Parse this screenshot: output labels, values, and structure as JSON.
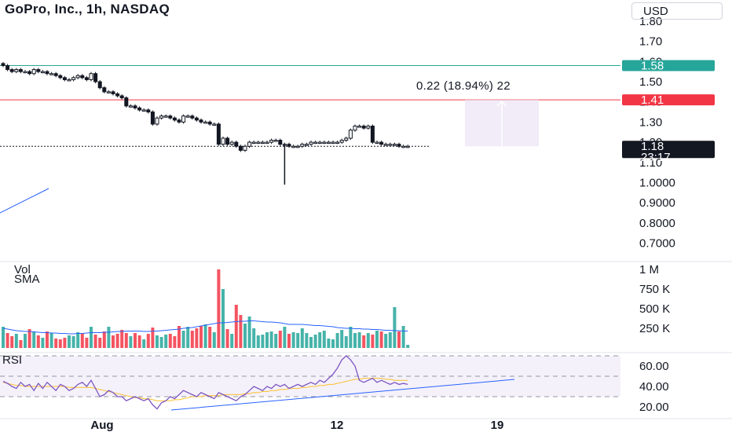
{
  "header": {
    "title": "GoPro, Inc., 1h, NASDAQ",
    "currency": "USD"
  },
  "measure_label": "0.22 (18.94%) 22",
  "panes": {
    "volume_label": "Vol",
    "volume_sma_label": "SMA",
    "rsi_label": "RSI"
  },
  "price_badges": [
    {
      "text": "1.58",
      "value": 1.58,
      "color": "#26a69a"
    },
    {
      "text": "1.41",
      "value": 1.41,
      "color": "#f23645"
    },
    {
      "text": "1.18",
      "value": 1.18,
      "color": "#131722",
      "sub": "23:17"
    }
  ],
  "chart_data": [
    {
      "type": "candlestick",
      "title": "GoPro, Inc., 1h, NASDAQ",
      "y_ticks": [
        "1.80",
        "1.70",
        "1.60",
        "1.50",
        "1.40",
        "1.30",
        "1.20",
        "1.10",
        "1.0000",
        "0.9000",
        "0.8000",
        "0.7000"
      ],
      "x_ticks": [
        "Aug",
        "12",
        "19"
      ],
      "horizontal_lines": [
        {
          "value": 1.58,
          "color": "#26a69a"
        },
        {
          "value": 1.41,
          "color": "#f23645"
        },
        {
          "value": 1.18,
          "color": "#131722",
          "style": "dotted"
        }
      ],
      "close": [
        1.58,
        1.56,
        1.55,
        1.56,
        1.55,
        1.55,
        1.54,
        1.56,
        1.55,
        1.55,
        1.54,
        1.54,
        1.53,
        1.52,
        1.51,
        1.51,
        1.52,
        1.53,
        1.52,
        1.51,
        1.54,
        1.5,
        1.47,
        1.45,
        1.45,
        1.44,
        1.43,
        1.42,
        1.38,
        1.38,
        1.37,
        1.36,
        1.36,
        1.35,
        1.29,
        1.32,
        1.33,
        1.33,
        1.32,
        1.31,
        1.3,
        1.33,
        1.33,
        1.32,
        1.31,
        1.3,
        1.3,
        1.29,
        1.29,
        1.19,
        1.22,
        1.19,
        1.2,
        1.18,
        1.16,
        1.18,
        1.2,
        1.2,
        1.2,
        1.2,
        1.2,
        1.21,
        1.21,
        1.19,
        1.19,
        1.18,
        1.18,
        1.18,
        1.19,
        1.19,
        1.2,
        1.2,
        1.2,
        1.2,
        1.2,
        1.2,
        1.2,
        1.21,
        1.22,
        1.26,
        1.28,
        1.28,
        1.27,
        1.28,
        1.2,
        1.2,
        1.19,
        1.19,
        1.19,
        1.19,
        1.18,
        1.18,
        1.18
      ],
      "low_spike": {
        "index": 64,
        "value": 0.99
      }
    },
    {
      "type": "bar",
      "title": "Vol",
      "y_ticks": [
        "1 M",
        "750 K",
        "500 K",
        "250 K"
      ],
      "volume": [
        270,
        190,
        150,
        180,
        100,
        180,
        240,
        210,
        160,
        130,
        210,
        190,
        120,
        110,
        130,
        160,
        150,
        200,
        190,
        130,
        270,
        170,
        130,
        210,
        270,
        160,
        180,
        230,
        190,
        150,
        190,
        160,
        110,
        180,
        260,
        160,
        140,
        170,
        180,
        150,
        280,
        220,
        270,
        220,
        250,
        280,
        300,
        270,
        200,
        1000,
        750,
        240,
        180,
        550,
        420,
        310,
        400,
        250,
        160,
        170,
        200,
        210,
        180,
        220,
        270,
        180,
        200,
        190,
        250,
        190,
        140,
        170,
        200,
        220,
        120,
        110,
        190,
        230,
        150,
        270,
        190,
        200,
        160,
        190,
        170,
        220,
        210,
        180,
        200,
        520,
        210,
        280,
        40
      ],
      "sma": [
        250,
        240,
        230,
        220,
        215,
        210,
        210,
        205,
        200,
        195,
        195,
        190,
        190,
        185,
        185,
        180,
        180,
        185,
        185,
        190,
        195,
        195,
        195,
        200,
        200,
        205,
        210,
        210,
        215,
        215,
        215,
        215,
        210,
        210,
        215,
        215,
        220,
        225,
        230,
        235,
        240,
        250,
        255,
        260,
        270,
        280,
        290,
        300,
        310,
        320,
        320,
        325,
        330,
        335,
        340,
        340,
        345,
        345,
        340,
        335,
        330,
        330,
        325,
        320,
        310,
        300,
        300,
        300,
        300,
        295,
        290,
        285,
        285,
        280,
        275,
        270,
        260,
        255,
        250,
        250,
        245,
        245,
        240,
        240,
        235,
        235,
        230,
        225,
        225,
        220,
        220,
        215,
        215
      ]
    },
    {
      "type": "line",
      "title": "RSI",
      "y_ticks": [
        "60.00",
        "40.00",
        "20.00"
      ],
      "levels": [
        70,
        50,
        30
      ],
      "rsi": [
        45,
        43,
        40,
        38,
        44,
        40,
        42,
        36,
        43,
        38,
        44,
        40,
        36,
        42,
        40,
        36,
        38,
        42,
        44,
        40,
        46,
        38,
        30,
        32,
        36,
        34,
        30,
        30,
        26,
        28,
        30,
        28,
        26,
        28,
        22,
        18,
        24,
        26,
        30,
        28,
        32,
        36,
        34,
        32,
        30,
        34,
        32,
        30,
        28,
        34,
        32,
        30,
        28,
        26,
        30,
        32,
        36,
        40,
        38,
        36,
        40,
        38,
        42,
        40,
        42,
        38,
        40,
        42,
        40,
        42,
        44,
        42,
        46,
        44,
        48,
        52,
        58,
        66,
        70,
        66,
        60,
        46,
        44,
        46,
        48,
        44,
        46,
        44,
        42,
        44,
        42,
        43,
        42
      ],
      "rsi_ma": [
        44,
        43,
        42,
        41,
        41,
        40,
        40,
        40,
        40,
        40,
        40,
        40,
        40,
        40,
        40,
        39,
        39,
        39,
        39,
        39,
        39,
        38,
        37,
        36,
        35,
        34,
        33,
        32,
        31,
        30,
        29,
        29,
        28,
        28,
        27,
        26,
        26,
        26,
        26,
        27,
        27,
        28,
        29,
        30,
        30,
        30,
        31,
        31,
        31,
        31,
        32,
        32,
        32,
        32,
        32,
        33,
        33,
        34,
        34,
        35,
        35,
        36,
        36,
        37,
        37,
        38,
        38,
        38,
        39,
        39,
        40,
        40,
        41,
        41,
        42,
        42,
        43,
        44,
        45,
        46,
        47,
        47,
        48,
        48,
        48,
        48,
        48,
        47,
        47,
        46,
        46,
        46,
        46
      ]
    }
  ],
  "colors": {
    "up": "#26a69a",
    "down": "#f23645",
    "candle": "#131722",
    "rsi": "#7e57c2",
    "rsi_ma": "#fbc02d",
    "sma": "#2962ff",
    "band": "#ede7f6"
  }
}
